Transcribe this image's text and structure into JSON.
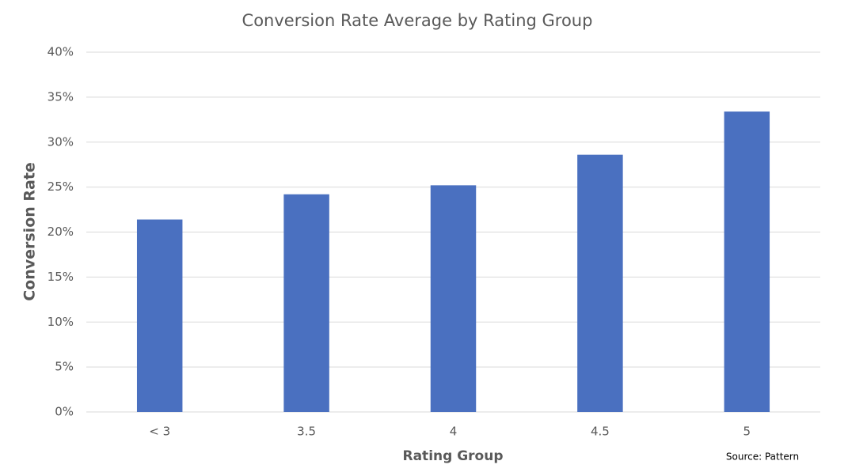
{
  "chart_data": {
    "type": "bar",
    "title": "Conversion Rate Average by Rating Group",
    "x_label": "Rating Group",
    "y_label": "Conversion Rate",
    "source": "Source: Pattern",
    "categories": [
      "< 3",
      "3.5",
      "4",
      "4.5",
      "5"
    ],
    "values": [
      21.4,
      24.2,
      25.2,
      28.6,
      33.4
    ],
    "color": "#4a70c0",
    "ylim": [
      0,
      40
    ],
    "yticks": [
      {
        "value": 0,
        "label": "0%"
      },
      {
        "value": 5,
        "label": "5%"
      },
      {
        "value": 10,
        "label": "10%"
      },
      {
        "value": 15,
        "label": "15%"
      },
      {
        "value": 20,
        "label": "20%"
      },
      {
        "value": 25,
        "label": "25%"
      },
      {
        "value": 30,
        "label": "30%"
      },
      {
        "value": 35,
        "label": "35%"
      },
      {
        "value": 40,
        "label": "40%"
      }
    ],
    "grid": true
  }
}
